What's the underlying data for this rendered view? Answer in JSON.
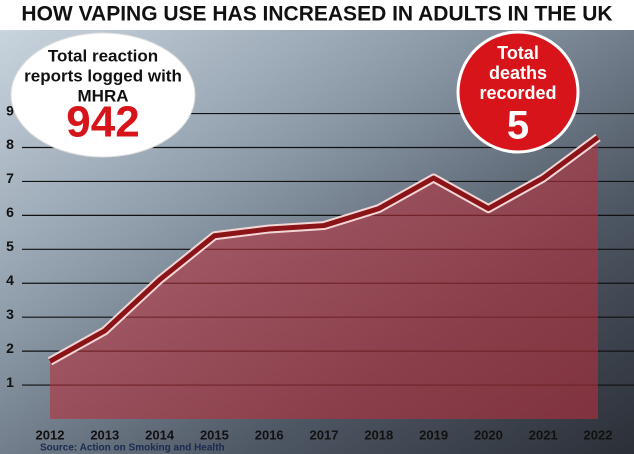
{
  "chart_data": {
    "type": "line",
    "title": "HOW VAPING USE HAS INCREASED IN ADULTS IN THE UK",
    "categories": [
      "2012",
      "2013",
      "2014",
      "2015",
      "2016",
      "2017",
      "2018",
      "2019",
      "2020",
      "2021",
      "2022"
    ],
    "series": [
      {
        "color": "#8b1418",
        "fill": "#b4303c",
        "values": [
          1.7,
          2.6,
          4.1,
          5.4,
          5.6,
          5.7,
          6.2,
          7.1,
          6.2,
          7.1,
          8.3
        ]
      }
    ],
    "ylim": [
      0,
      9.4
    ],
    "yticks": [
      1,
      2,
      3,
      4,
      5,
      6,
      7,
      8,
      9
    ],
    "grid": true,
    "annotations": [
      {
        "lines": [
          "Total reaction",
          "reports logged with",
          "MHRA"
        ],
        "value": 942,
        "color": "#d7141a"
      },
      {
        "lines": [
          "Total",
          "deaths",
          "recorded"
        ],
        "value": 5,
        "color": "#ffffff"
      }
    ],
    "source": "Source: Action on Smoking and Health"
  }
}
